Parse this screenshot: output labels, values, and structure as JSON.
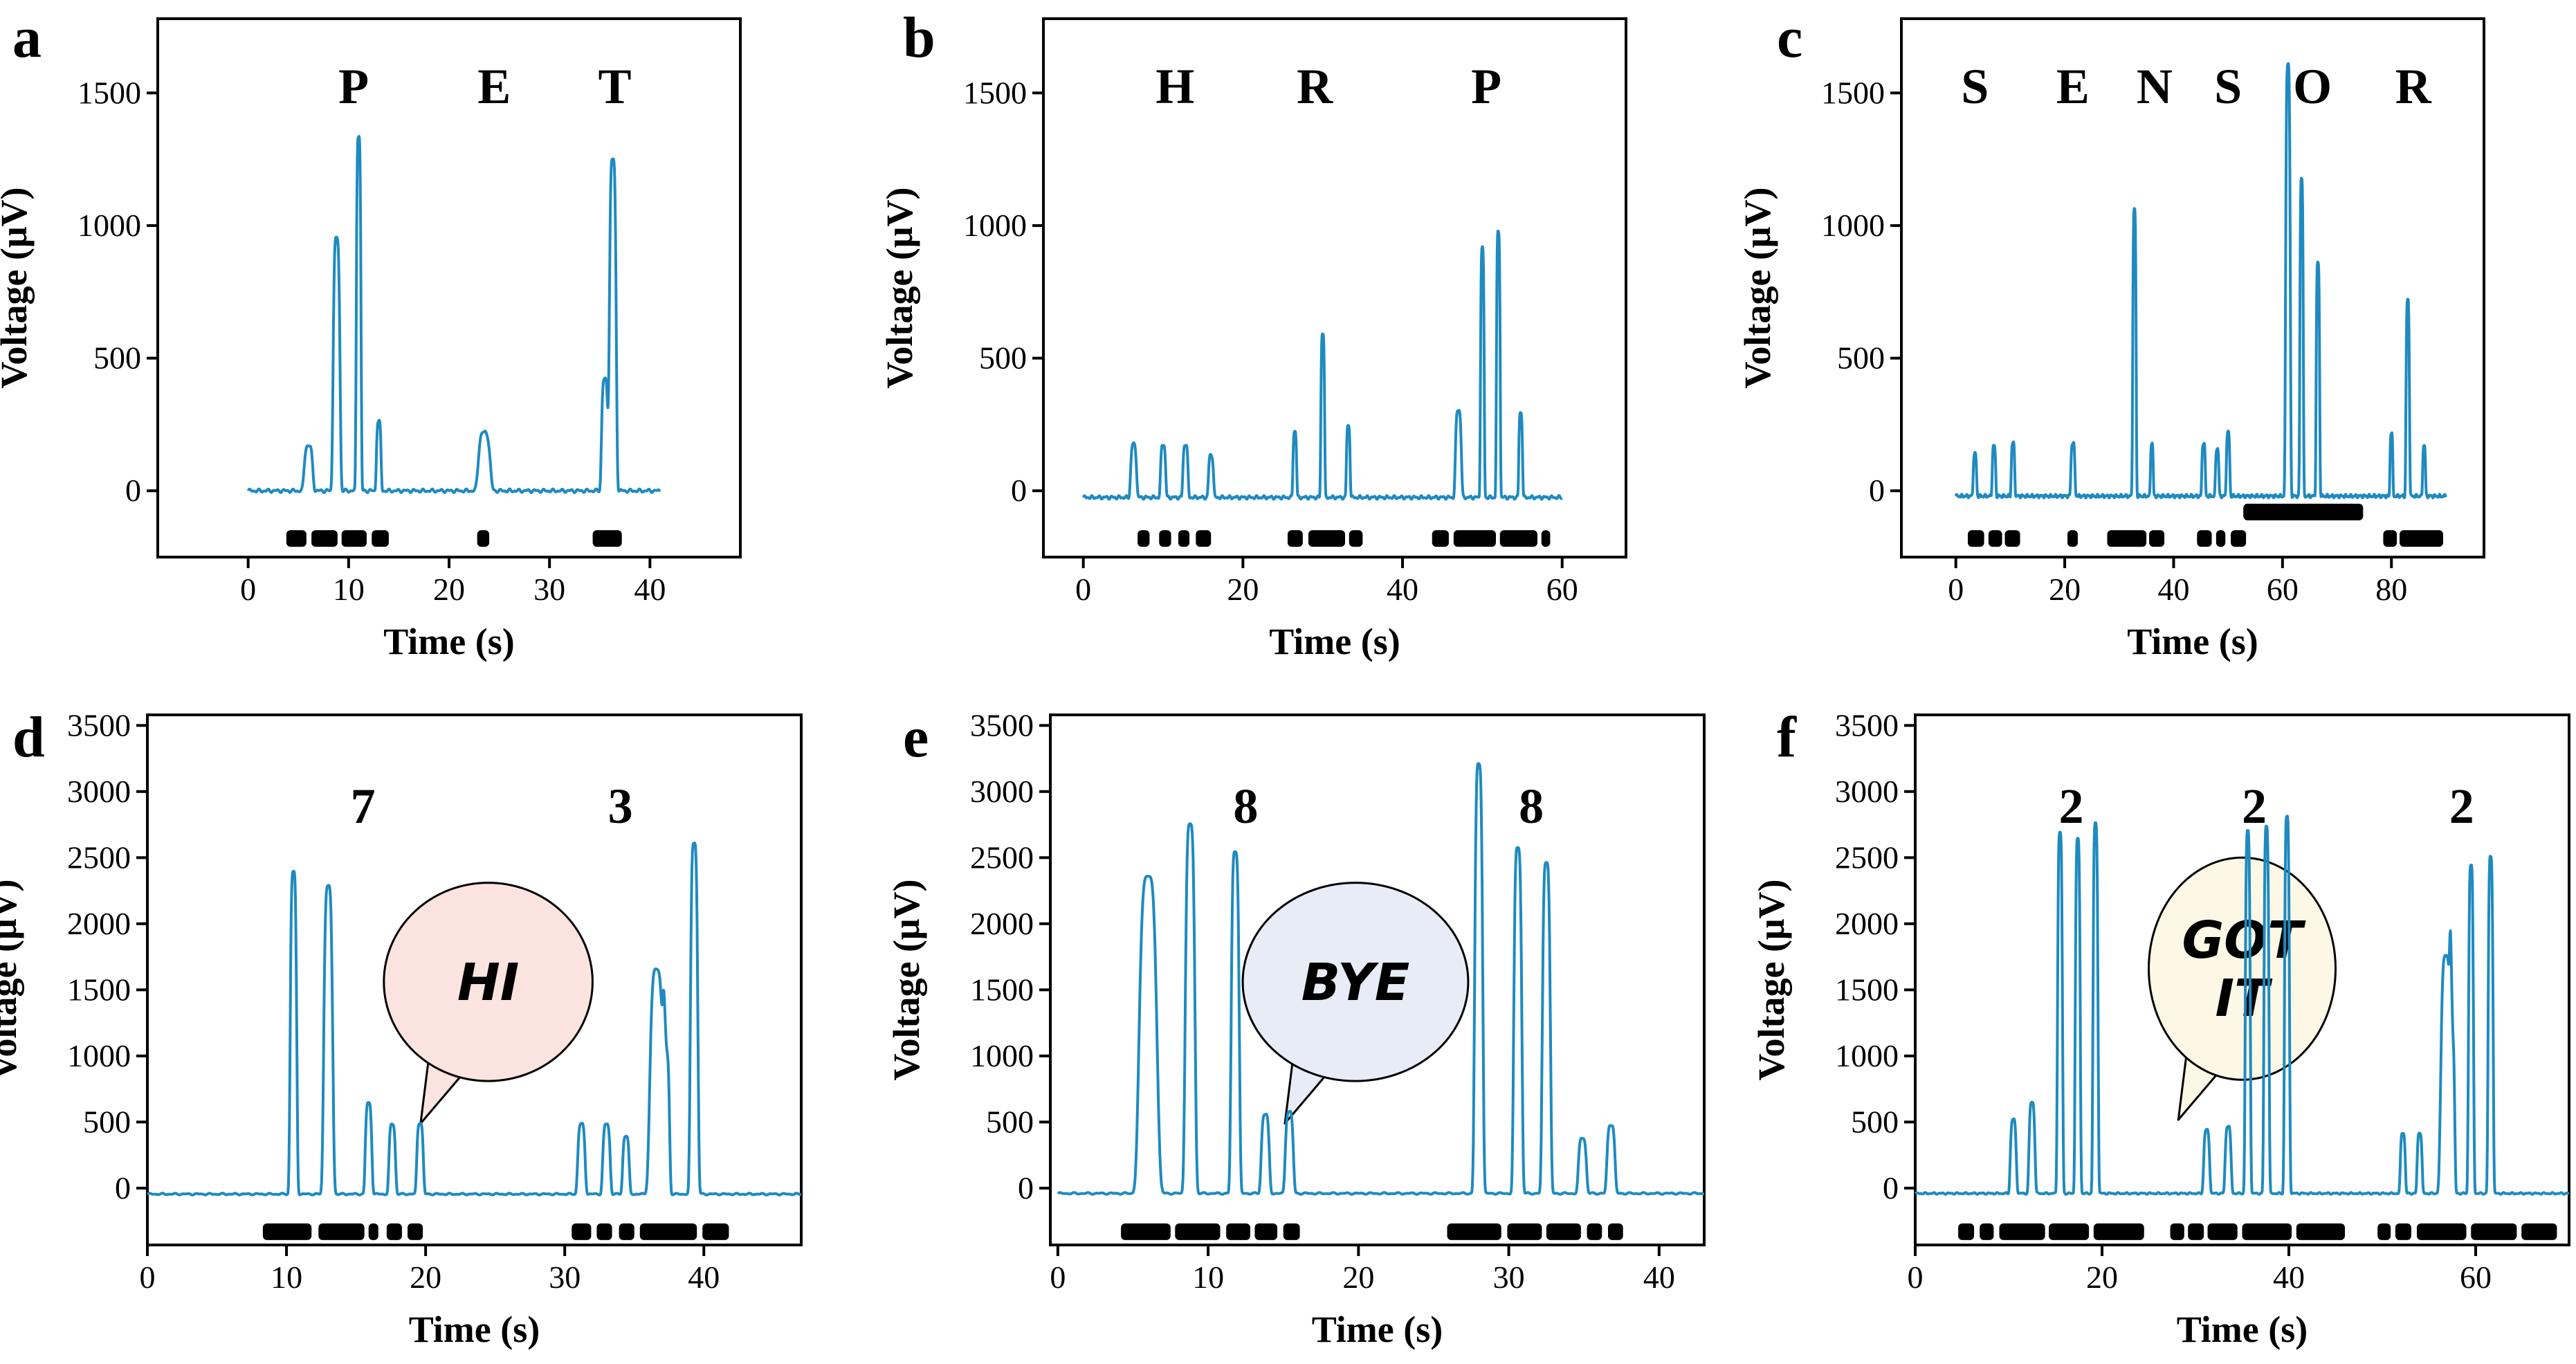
{
  "colors": {
    "line": "#1f8ac0",
    "marker": "#000000",
    "axis": "#000000"
  },
  "chart_data": [
    {
      "panel": "a",
      "type": "line",
      "xlabel": "Time (s)",
      "ylabel": "Voltage (μV)",
      "xlim": [
        -9,
        49
      ],
      "ylim": [
        -250,
        1780
      ],
      "xticks": [
        0,
        10,
        20,
        30,
        40
      ],
      "yticks": [
        0,
        500,
        1000,
        1500
      ],
      "annotations": [
        {
          "text": "P",
          "x": 10.5,
          "y": 1530
        },
        {
          "text": "E",
          "x": 24.5,
          "y": 1530
        },
        {
          "text": "T",
          "x": 36.5,
          "y": 1530
        }
      ],
      "peaks": [
        {
          "t": 6.0,
          "v": 170,
          "w": 0.4
        },
        {
          "t": 8.8,
          "v": 950,
          "w": 0.32
        },
        {
          "t": 11.0,
          "v": 1340,
          "w": 0.22
        },
        {
          "t": 13.0,
          "v": 260,
          "w": 0.22
        },
        {
          "t": 23.5,
          "v": 220,
          "w": 0.55
        },
        {
          "t": 35.5,
          "v": 420,
          "w": 0.3
        },
        {
          "t": 36.3,
          "v": 1250,
          "w": 0.32
        }
      ],
      "baseline": 0,
      "x_end": 41,
      "markers": {
        "y": -180,
        "segments": [
          [
            3.8,
            5.8
          ],
          [
            6.3,
            8.9
          ],
          [
            9.3,
            11.8
          ],
          [
            12.3,
            14.0
          ],
          [
            22.8,
            24.0
          ],
          [
            34.3,
            37.2
          ]
        ]
      }
    },
    {
      "panel": "b",
      "type": "line",
      "xlabel": "Time (s)",
      "ylabel": "Voltage (μV)",
      "xlim": [
        -5,
        68
      ],
      "ylim": [
        -250,
        1780
      ],
      "xticks": [
        0,
        20,
        40,
        60
      ],
      "yticks": [
        0,
        500,
        1000,
        1500
      ],
      "annotations": [
        {
          "text": "H",
          "x": 11.5,
          "y": 1530
        },
        {
          "text": "R",
          "x": 29.0,
          "y": 1530
        },
        {
          "text": "P",
          "x": 50.5,
          "y": 1530
        }
      ],
      "peaks": [
        {
          "t": 6.3,
          "v": 200,
          "w": 0.35
        },
        {
          "t": 10.0,
          "v": 200,
          "w": 0.3
        },
        {
          "t": 12.8,
          "v": 200,
          "w": 0.3
        },
        {
          "t": 16.0,
          "v": 160,
          "w": 0.3
        },
        {
          "t": 26.5,
          "v": 250,
          "w": 0.22
        },
        {
          "t": 30.0,
          "v": 620,
          "w": 0.22
        },
        {
          "t": 33.2,
          "v": 270,
          "w": 0.22
        },
        {
          "t": 47.0,
          "v": 330,
          "w": 0.35
        },
        {
          "t": 50.0,
          "v": 940,
          "w": 0.22
        },
        {
          "t": 52.0,
          "v": 1000,
          "w": 0.22
        },
        {
          "t": 54.8,
          "v": 320,
          "w": 0.22
        }
      ],
      "baseline": -25,
      "x_end": 60,
      "markers": {
        "y": -180,
        "segments": [
          [
            6.8,
            8.3
          ],
          [
            9.5,
            11.0
          ],
          [
            11.9,
            13.3
          ],
          [
            14.1,
            16.0
          ],
          [
            25.6,
            27.5
          ],
          [
            28.2,
            32.8
          ],
          [
            33.3,
            35.0
          ],
          [
            43.7,
            45.8
          ],
          [
            46.4,
            51.7
          ],
          [
            52.2,
            56.9
          ],
          [
            57.4,
            58.5
          ]
        ]
      }
    },
    {
      "panel": "c",
      "type": "line",
      "xlabel": "Time (s)",
      "ylabel": "Voltage (μV)",
      "xlim": [
        -10,
        97
      ],
      "ylim": [
        -250,
        1780
      ],
      "xticks": [
        0,
        20,
        40,
        60,
        80
      ],
      "yticks": [
        0,
        500,
        1000,
        1500
      ],
      "annotations": [
        {
          "text": "S",
          "x": 3.5,
          "y": 1530
        },
        {
          "text": "E",
          "x": 21.5,
          "y": 1530
        },
        {
          "text": "N",
          "x": 36.5,
          "y": 1530
        },
        {
          "text": "S",
          "x": 50.0,
          "y": 1530
        },
        {
          "text": "O",
          "x": 65.5,
          "y": 1530
        },
        {
          "text": "R",
          "x": 84.0,
          "y": 1530
        }
      ],
      "peaks": [
        {
          "t": 3.5,
          "v": 160,
          "w": 0.3
        },
        {
          "t": 7.0,
          "v": 190,
          "w": 0.3
        },
        {
          "t": 10.5,
          "v": 200,
          "w": 0.3
        },
        {
          "t": 21.5,
          "v": 200,
          "w": 0.35
        },
        {
          "t": 32.8,
          "v": 1080,
          "w": 0.3
        },
        {
          "t": 36.0,
          "v": 200,
          "w": 0.25
        },
        {
          "t": 45.5,
          "v": 200,
          "w": 0.3
        },
        {
          "t": 48.0,
          "v": 180,
          "w": 0.3
        },
        {
          "t": 50.0,
          "v": 240,
          "w": 0.3
        },
        {
          "t": 61.0,
          "v": 1630,
          "w": 0.4
        },
        {
          "t": 63.5,
          "v": 1200,
          "w": 0.3
        },
        {
          "t": 66.5,
          "v": 880,
          "w": 0.3
        },
        {
          "t": 80.0,
          "v": 240,
          "w": 0.25
        },
        {
          "t": 83.0,
          "v": 740,
          "w": 0.3
        },
        {
          "t": 86.0,
          "v": 190,
          "w": 0.25
        }
      ],
      "baseline": -20,
      "x_end": 90,
      "markers": [
        {
          "y": -180,
          "segments": [
            [
              2.2,
              5.2
            ],
            [
              6.0,
              8.5
            ],
            [
              9.0,
              11.8
            ],
            [
              20.5,
              22.4
            ],
            [
              27.8,
              35.0
            ],
            [
              35.5,
              38.3
            ],
            [
              44.3,
              47.0
            ],
            [
              47.8,
              49.5
            ],
            [
              50.5,
              53.3
            ],
            [
              78.5,
              81.0
            ],
            [
              81.5,
              89.5
            ]
          ]
        },
        {
          "y": -80,
          "segments": [
            [
              52.8,
              74.8
            ]
          ]
        }
      ]
    },
    {
      "panel": "d",
      "type": "line",
      "xlabel": "Time (s)",
      "ylabel": "Voltage (μV)",
      "xlim": [
        0,
        47
      ],
      "ylim": [
        -430,
        3580
      ],
      "xticks": [
        0,
        10,
        20,
        30,
        40
      ],
      "yticks": [
        0,
        500,
        1000,
        1500,
        2000,
        2500,
        3000,
        3500
      ],
      "annotations": [
        {
          "text": "7",
          "x": 15.5,
          "y": 2900
        },
        {
          "text": "3",
          "x": 34.0,
          "y": 2900
        }
      ],
      "bubble": {
        "text": [
          "HI"
        ],
        "fill": "#fbe3e0",
        "cx": 24.5,
        "cy": 1560,
        "rx": 7.5,
        "ry": 750
      },
      "peaks": [
        {
          "t": 10.5,
          "v": 2440,
          "w": 0.22
        },
        {
          "t": 13.0,
          "v": 2330,
          "w": 0.3
        },
        {
          "t": 15.9,
          "v": 690,
          "w": 0.22
        },
        {
          "t": 17.6,
          "v": 530,
          "w": 0.22
        },
        {
          "t": 19.6,
          "v": 540,
          "w": 0.22
        },
        {
          "t": 31.2,
          "v": 530,
          "w": 0.25
        },
        {
          "t": 33.0,
          "v": 530,
          "w": 0.25
        },
        {
          "t": 34.4,
          "v": 440,
          "w": 0.22
        },
        {
          "t": 36.6,
          "v": 1700,
          "w": 0.45
        },
        {
          "t": 37.3,
          "v": 1050,
          "w": 0.22
        },
        {
          "t": 39.3,
          "v": 2660,
          "w": 0.25
        }
      ],
      "baseline": -45,
      "x_end": 47,
      "markers": {
        "y": -330,
        "segments": [
          [
            8.3,
            11.8
          ],
          [
            12.3,
            15.6
          ],
          [
            15.9,
            16.6
          ],
          [
            17.2,
            18.3
          ],
          [
            18.7,
            19.8
          ],
          [
            30.5,
            31.9
          ],
          [
            32.3,
            33.4
          ],
          [
            33.9,
            35.0
          ],
          [
            35.4,
            39.5
          ],
          [
            39.9,
            41.8
          ]
        ]
      }
    },
    {
      "panel": "e",
      "type": "line",
      "xlabel": "Time (s)",
      "ylabel": "Voltage (μV)",
      "xlim": [
        -0.5,
        43
      ],
      "ylim": [
        -430,
        3580
      ],
      "xticks": [
        0,
        10,
        20,
        30,
        40
      ],
      "yticks": [
        0,
        500,
        1000,
        1500,
        2000,
        2500,
        3000,
        3500
      ],
      "annotations": [
        {
          "text": "8",
          "x": 12.5,
          "y": 2900
        },
        {
          "text": "8",
          "x": 31.5,
          "y": 2900
        }
      ],
      "bubble": {
        "text": [
          "BYE"
        ],
        "fill": "#e8ecf7",
        "cx": 19.8,
        "cy": 1560,
        "rx": 7.5,
        "ry": 750
      },
      "peaks": [
        {
          "t": 6.0,
          "v": 2400,
          "w": 0.55
        },
        {
          "t": 8.8,
          "v": 2790,
          "w": 0.3
        },
        {
          "t": 11.8,
          "v": 2590,
          "w": 0.25
        },
        {
          "t": 13.8,
          "v": 600,
          "w": 0.25
        },
        {
          "t": 15.4,
          "v": 620,
          "w": 0.25
        },
        {
          "t": 28.0,
          "v": 3250,
          "w": 0.25
        },
        {
          "t": 30.6,
          "v": 2620,
          "w": 0.25
        },
        {
          "t": 32.5,
          "v": 2510,
          "w": 0.25
        },
        {
          "t": 34.9,
          "v": 420,
          "w": 0.25
        },
        {
          "t": 36.8,
          "v": 520,
          "w": 0.25
        }
      ],
      "baseline": -40,
      "x_end": 43,
      "markers": {
        "y": -330,
        "segments": [
          [
            4.2,
            7.5
          ],
          [
            7.8,
            10.8
          ],
          [
            11.2,
            12.8
          ],
          [
            13.1,
            14.6
          ],
          [
            15.0,
            16.1
          ],
          [
            25.9,
            29.5
          ],
          [
            29.9,
            32.2
          ],
          [
            32.5,
            34.8
          ],
          [
            35.2,
            36.2
          ],
          [
            36.6,
            37.6
          ]
        ]
      }
    },
    {
      "panel": "f",
      "type": "line",
      "xlabel": "Time (s)",
      "ylabel": "Voltage (μV)",
      "xlim": [
        0,
        70
      ],
      "ylim": [
        -430,
        3580
      ],
      "xticks": [
        0,
        20,
        40,
        60
      ],
      "yticks": [
        0,
        500,
        1000,
        1500,
        2000,
        2500,
        3000,
        3500
      ],
      "annotations": [
        {
          "text": "2",
          "x": 16.7,
          "y": 2900
        },
        {
          "text": "2",
          "x": 36.3,
          "y": 2900
        },
        {
          "text": "2",
          "x": 58.5,
          "y": 2900
        }
      ],
      "bubble": {
        "text": [
          "GOT",
          "IT"
        ],
        "fill": "#fdf7e6",
        "cx": 35.0,
        "cy": 1660,
        "rx": 10.0,
        "ry": 840
      },
      "peaks": [
        {
          "t": 10.5,
          "v": 560,
          "w": 0.3
        },
        {
          "t": 12.5,
          "v": 690,
          "w": 0.3
        },
        {
          "t": 15.5,
          "v": 2730,
          "w": 0.25
        },
        {
          "t": 17.4,
          "v": 2680,
          "w": 0.25
        },
        {
          "t": 19.3,
          "v": 2800,
          "w": 0.25
        },
        {
          "t": 31.2,
          "v": 480,
          "w": 0.3
        },
        {
          "t": 33.5,
          "v": 510,
          "w": 0.3
        },
        {
          "t": 35.6,
          "v": 2740,
          "w": 0.25
        },
        {
          "t": 37.6,
          "v": 2780,
          "w": 0.25
        },
        {
          "t": 39.8,
          "v": 2850,
          "w": 0.25
        },
        {
          "t": 52.2,
          "v": 460,
          "w": 0.25
        },
        {
          "t": 54.0,
          "v": 460,
          "w": 0.25
        },
        {
          "t": 56.8,
          "v": 1800,
          "w": 0.5
        },
        {
          "t": 57.5,
          "v": 1100,
          "w": 0.25
        },
        {
          "t": 59.5,
          "v": 2480,
          "w": 0.25
        },
        {
          "t": 61.6,
          "v": 2550,
          "w": 0.25
        }
      ],
      "baseline": -40,
      "x_end": 70,
      "markers": {
        "y": -330,
        "segments": [
          [
            4.6,
            6.3
          ],
          [
            6.9,
            8.4
          ],
          [
            9.0,
            13.9
          ],
          [
            14.3,
            18.6
          ],
          [
            19.1,
            24.5
          ],
          [
            27.3,
            28.8
          ],
          [
            29.2,
            30.9
          ],
          [
            31.3,
            34.5
          ],
          [
            35.0,
            40.3
          ],
          [
            40.8,
            46.0
          ],
          [
            49.5,
            50.9
          ],
          [
            51.4,
            53.1
          ],
          [
            53.7,
            59.0
          ],
          [
            59.5,
            64.4
          ],
          [
            64.9,
            68.7
          ]
        ]
      }
    }
  ]
}
